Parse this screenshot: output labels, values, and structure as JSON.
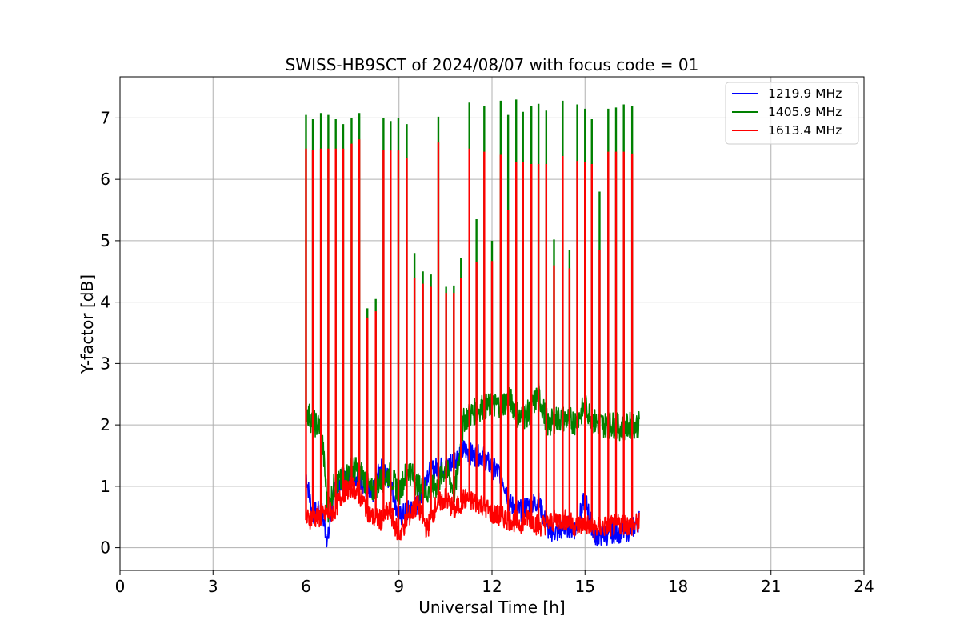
{
  "chart_data": {
    "type": "line",
    "title": "SWISS-HB9SCT of 2024/08/07 with focus code = 01",
    "xlabel": "Universal Time [h]",
    "ylabel": "Y-factor [dB]",
    "xlim": [
      0,
      24
    ],
    "ylim": [
      -0.37,
      7.67
    ],
    "x_ticks": [
      0,
      3,
      6,
      9,
      12,
      15,
      18,
      21,
      24
    ],
    "y_ticks": [
      0,
      1,
      2,
      3,
      4,
      5,
      6,
      7
    ],
    "grid": true,
    "legend_position": "top-right",
    "series": [
      {
        "name": "1219.9 MHz",
        "color": "#0000ff",
        "x": [
          6.0,
          6.2,
          6.5,
          6.7,
          6.9,
          7.2,
          7.5,
          7.8,
          8.1,
          8.4,
          8.7,
          9.0,
          9.3,
          9.6,
          9.9,
          10.2,
          10.5,
          10.8,
          11.1,
          11.4,
          11.7,
          12.0,
          12.3,
          12.6,
          12.9,
          13.2,
          13.5,
          13.8,
          14.1,
          14.4,
          14.7,
          15.0,
          15.3,
          15.6,
          15.9,
          16.2,
          16.5,
          16.75
        ],
        "y": [
          1.2,
          0.55,
          0.6,
          0.1,
          0.9,
          1.15,
          1.2,
          1.1,
          0.8,
          1.3,
          1.1,
          0.5,
          0.6,
          0.7,
          1.2,
          1.3,
          1.3,
          1.45,
          1.6,
          1.5,
          1.5,
          1.3,
          1.2,
          0.7,
          0.6,
          0.7,
          0.75,
          0.3,
          0.25,
          0.35,
          0.3,
          0.8,
          0.2,
          0.2,
          0.25,
          0.25,
          0.3,
          0.45
        ]
      },
      {
        "name": "1405.9 MHz",
        "color": "#008000",
        "x": [
          6.0,
          6.2,
          6.5,
          6.7,
          6.9,
          7.2,
          7.5,
          7.8,
          8.1,
          8.4,
          8.7,
          9.0,
          9.3,
          9.6,
          9.9,
          10.2,
          10.5,
          10.8,
          11.1,
          11.4,
          11.7,
          12.0,
          12.3,
          12.6,
          12.9,
          13.2,
          13.5,
          13.8,
          14.1,
          14.4,
          14.7,
          15.0,
          15.3,
          15.6,
          15.9,
          16.2,
          16.5,
          16.75
        ],
        "y": [
          2.25,
          2.05,
          1.95,
          0.6,
          1.0,
          1.1,
          1.3,
          1.2,
          0.9,
          1.1,
          1.2,
          0.9,
          1.3,
          1.0,
          0.9,
          1.0,
          1.3,
          0.9,
          2.1,
          2.2,
          2.3,
          2.3,
          2.35,
          2.4,
          2.1,
          2.2,
          2.5,
          2.0,
          2.1,
          2.1,
          2.05,
          2.3,
          2.05,
          2.0,
          2.0,
          1.95,
          2.0,
          2.0
        ],
        "spikes": [
          [
            6.0,
            7.05
          ],
          [
            6.22,
            6.98
          ],
          [
            6.48,
            7.08
          ],
          [
            6.72,
            7.05
          ],
          [
            6.96,
            6.98
          ],
          [
            7.2,
            6.9
          ],
          [
            7.47,
            7.0
          ],
          [
            7.72,
            7.08
          ],
          [
            7.98,
            3.9
          ],
          [
            8.25,
            4.05
          ],
          [
            8.5,
            7.0
          ],
          [
            8.73,
            6.95
          ],
          [
            8.98,
            7.0
          ],
          [
            9.25,
            6.9
          ],
          [
            9.5,
            4.8
          ],
          [
            9.77,
            4.5
          ],
          [
            10.03,
            4.45
          ],
          [
            10.27,
            7.02
          ],
          [
            10.52,
            4.25
          ],
          [
            10.77,
            4.27
          ],
          [
            11.0,
            4.72
          ],
          [
            11.27,
            7.25
          ],
          [
            11.5,
            5.35
          ],
          [
            11.75,
            7.2
          ],
          [
            12.0,
            5.0
          ],
          [
            12.28,
            7.28
          ],
          [
            12.52,
            7.05
          ],
          [
            12.78,
            7.3
          ],
          [
            13.0,
            7.1
          ],
          [
            13.27,
            7.2
          ],
          [
            13.5,
            7.23
          ],
          [
            13.75,
            7.12
          ],
          [
            14.0,
            5.02
          ],
          [
            14.28,
            7.28
          ],
          [
            14.5,
            4.85
          ],
          [
            14.75,
            7.22
          ],
          [
            15.0,
            7.15
          ],
          [
            15.22,
            6.98
          ],
          [
            15.47,
            5.8
          ],
          [
            15.75,
            7.15
          ],
          [
            16.0,
            7.17
          ],
          [
            16.25,
            7.22
          ],
          [
            16.52,
            7.2
          ]
        ]
      },
      {
        "name": "1613.4 MHz",
        "color": "#ff0000",
        "x": [
          6.0,
          6.2,
          6.5,
          6.7,
          6.9,
          7.2,
          7.5,
          7.8,
          8.1,
          8.4,
          8.7,
          9.0,
          9.3,
          9.6,
          9.9,
          10.2,
          10.5,
          10.8,
          11.1,
          11.4,
          11.7,
          12.0,
          12.3,
          12.6,
          12.9,
          13.2,
          13.5,
          13.8,
          14.1,
          14.4,
          14.7,
          15.0,
          15.3,
          15.6,
          15.9,
          16.2,
          16.5,
          16.75
        ],
        "y": [
          0.45,
          0.5,
          0.5,
          0.55,
          0.6,
          0.9,
          1.0,
          0.8,
          0.5,
          0.45,
          0.6,
          0.2,
          0.5,
          0.7,
          0.3,
          0.7,
          0.8,
          0.6,
          0.8,
          0.75,
          0.7,
          0.55,
          0.5,
          0.45,
          0.4,
          0.5,
          0.35,
          0.4,
          0.45,
          0.45,
          0.35,
          0.4,
          0.3,
          0.35,
          0.35,
          0.4,
          0.35,
          0.4
        ],
        "spikes": [
          [
            6.0,
            6.5
          ],
          [
            6.22,
            6.48
          ],
          [
            6.48,
            6.5
          ],
          [
            6.72,
            6.5
          ],
          [
            6.96,
            6.5
          ],
          [
            7.2,
            6.5
          ],
          [
            7.47,
            6.58
          ],
          [
            7.72,
            6.65
          ],
          [
            7.98,
            3.75
          ],
          [
            8.25,
            3.85
          ],
          [
            8.5,
            6.48
          ],
          [
            8.73,
            6.47
          ],
          [
            8.98,
            6.47
          ],
          [
            9.25,
            6.35
          ],
          [
            9.5,
            4.4
          ],
          [
            9.77,
            4.3
          ],
          [
            10.03,
            4.25
          ],
          [
            10.27,
            6.6
          ],
          [
            10.52,
            4.15
          ],
          [
            10.77,
            4.15
          ],
          [
            11.0,
            4.4
          ],
          [
            11.27,
            6.5
          ],
          [
            11.5,
            4.65
          ],
          [
            11.75,
            6.45
          ],
          [
            12.0,
            4.67
          ],
          [
            12.28,
            6.4
          ],
          [
            12.52,
            5.5
          ],
          [
            12.78,
            6.28
          ],
          [
            13.0,
            6.28
          ],
          [
            13.27,
            6.25
          ],
          [
            13.5,
            6.25
          ],
          [
            13.75,
            6.25
          ],
          [
            14.0,
            4.6
          ],
          [
            14.28,
            6.38
          ],
          [
            14.5,
            4.55
          ],
          [
            14.75,
            6.3
          ],
          [
            15.0,
            6.28
          ],
          [
            15.22,
            6.25
          ],
          [
            15.47,
            4.85
          ],
          [
            15.75,
            6.45
          ],
          [
            16.0,
            6.45
          ],
          [
            16.25,
            6.45
          ],
          [
            16.52,
            6.42
          ]
        ]
      }
    ]
  }
}
